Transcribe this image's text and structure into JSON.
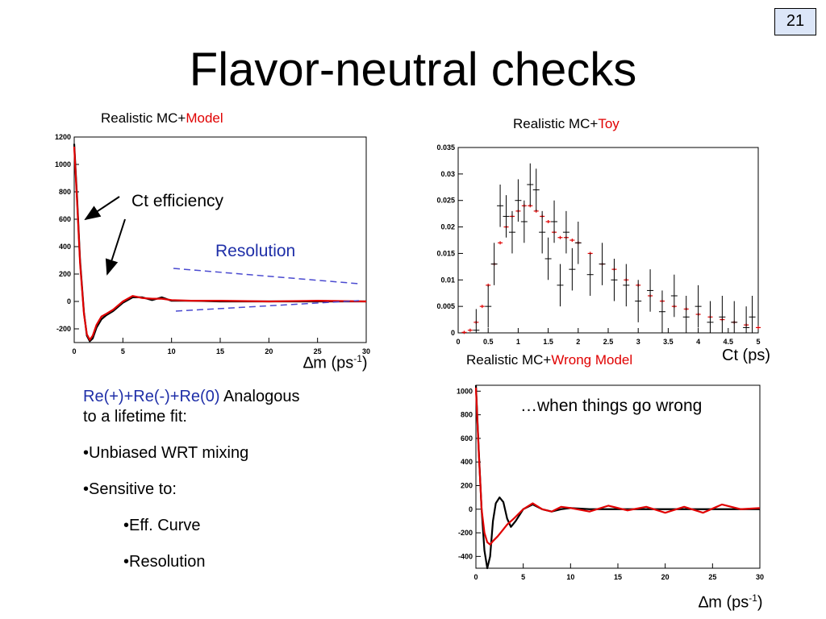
{
  "page_number": "21",
  "title": "Flavor-neutral checks",
  "panels": {
    "top_left": {
      "caption_prefix": "Realistic MC+",
      "caption_colored": "Model",
      "xlabel_main": "∆m (ps",
      "xlabel_sup": "-1",
      "xlabel_close": ")",
      "annotation_ct_eff": "Ct efficiency",
      "annotation_resolution": "Resolution"
    },
    "top_right": {
      "caption_prefix": "Realistic MC+",
      "caption_colored": "Toy",
      "xlabel": "Ct (ps)"
    },
    "bottom_right": {
      "caption_prefix": "Realistic MC+",
      "caption_colored": "Wrong Model",
      "annotation": "…when things go wrong",
      "xlabel_main": "∆m (ps",
      "xlabel_sup": "-1",
      "xlabel_close": ")"
    }
  },
  "text_block": {
    "line1_colored": "Re(+)+Re(-)+Re(0)",
    "line1_rest": " Analogous",
    "line2": "to a lifetime fit:",
    "bullet1": "•Unbiased WRT mixing",
    "bullet2": "•Sensitive to:",
    "sub1": "•Eff. Curve",
    "sub2": "•Resolution"
  },
  "colors": {
    "red": "#e00000",
    "blue": "#1f2fa8",
    "page_box": "#dce6f8"
  },
  "chart_data": [
    {
      "type": "line",
      "id": "top_left",
      "xlim": [
        0,
        30
      ],
      "ylim": [
        -300,
        1200
      ],
      "xticks": [
        0,
        5,
        10,
        15,
        20,
        25,
        30
      ],
      "yticks": [
        -200,
        0,
        200,
        400,
        600,
        800,
        1000,
        1200
      ],
      "series": [
        {
          "color": "#000000",
          "x": [
            0,
            0.3,
            0.6,
            1,
            1.3,
            1.6,
            1.9,
            2.3,
            2.8,
            3.3,
            4,
            5,
            6,
            7,
            8,
            9,
            10,
            12,
            15,
            20,
            25,
            30
          ],
          "y": [
            1150,
            750,
            300,
            -80,
            -250,
            -290,
            -270,
            -190,
            -130,
            -100,
            -70,
            -10,
            30,
            30,
            10,
            30,
            5,
            5,
            0,
            0,
            0,
            0
          ]
        },
        {
          "color": "#e00000",
          "x": [
            0,
            0.3,
            0.6,
            1,
            1.3,
            1.6,
            1.9,
            2.3,
            2.8,
            3.3,
            4,
            5,
            6,
            7,
            8,
            9,
            10,
            12,
            15,
            20,
            25,
            30
          ],
          "y": [
            1130,
            720,
            280,
            -90,
            -240,
            -280,
            -250,
            -170,
            -110,
            -90,
            -60,
            0,
            40,
            25,
            20,
            20,
            10,
            5,
            5,
            0,
            5,
            0
          ]
        }
      ]
    },
    {
      "type": "scatter",
      "id": "top_right",
      "xlim": [
        0,
        5
      ],
      "ylim": [
        0,
        0.035
      ],
      "xticks": [
        0,
        0.5,
        1,
        1.5,
        2,
        2.5,
        3,
        3.5,
        4,
        4.5,
        5
      ],
      "yticks": [
        0,
        0.005,
        0.01,
        0.015,
        0.02,
        0.025,
        0.03,
        0.035
      ],
      "series": [
        {
          "name": "Toy",
          "color": "#e00000",
          "x": [
            0.1,
            0.2,
            0.3,
            0.4,
            0.5,
            0.6,
            0.7,
            0.8,
            0.9,
            1.0,
            1.1,
            1.2,
            1.3,
            1.4,
            1.5,
            1.6,
            1.7,
            1.8,
            1.9,
            2.0,
            2.2,
            2.4,
            2.6,
            2.8,
            3.0,
            3.2,
            3.4,
            3.6,
            3.8,
            4.0,
            4.2,
            4.4,
            4.6,
            4.8,
            5.0
          ],
          "y": [
            0.0001,
            0.0005,
            0.002,
            0.005,
            0.009,
            0.013,
            0.017,
            0.02,
            0.022,
            0.023,
            0.024,
            0.024,
            0.023,
            0.022,
            0.021,
            0.019,
            0.018,
            0.018,
            0.0175,
            0.017,
            0.015,
            0.013,
            0.012,
            0.01,
            0.009,
            0.007,
            0.006,
            0.005,
            0.0045,
            0.0035,
            0.003,
            0.0025,
            0.002,
            0.0015,
            0.001
          ]
        },
        {
          "name": "MC",
          "color": "#000000",
          "x": [
            0.3,
            0.5,
            0.6,
            0.7,
            0.8,
            0.9,
            1.0,
            1.1,
            1.2,
            1.3,
            1.4,
            1.5,
            1.6,
            1.7,
            1.8,
            1.9,
            2.0,
            2.2,
            2.4,
            2.6,
            2.8,
            3.0,
            3.2,
            3.4,
            3.6,
            3.8,
            4.0,
            4.2,
            4.4,
            4.6,
            4.8,
            4.9
          ],
          "y": [
            0.0005,
            0.005,
            0.013,
            0.024,
            0.022,
            0.019,
            0.025,
            0.021,
            0.028,
            0.027,
            0.019,
            0.014,
            0.021,
            0.009,
            0.019,
            0.012,
            0.017,
            0.011,
            0.013,
            0.01,
            0.009,
            0.006,
            0.008,
            0.004,
            0.007,
            0.003,
            0.005,
            0.002,
            0.003,
            0.002,
            0.001,
            0.003
          ],
          "err": 0.004
        }
      ]
    },
    {
      "type": "line",
      "id": "bottom_right",
      "xlim": [
        0,
        30
      ],
      "ylim": [
        -500,
        1050
      ],
      "xticks": [
        0,
        5,
        10,
        15,
        20,
        25,
        30
      ],
      "yticks": [
        -400,
        -200,
        0,
        200,
        400,
        600,
        800,
        1000
      ],
      "series": [
        {
          "color": "#000000",
          "x": [
            0,
            0.3,
            0.6,
            0.9,
            1.2,
            1.5,
            1.8,
            2.1,
            2.5,
            2.9,
            3.3,
            3.7,
            4.2,
            5,
            6,
            7,
            8,
            9,
            10,
            12,
            15,
            20,
            25,
            30
          ],
          "y": [
            1050,
            500,
            0,
            -350,
            -500,
            -400,
            -100,
            50,
            100,
            60,
            -80,
            -150,
            -100,
            0,
            40,
            0,
            -20,
            0,
            10,
            0,
            0,
            0,
            0,
            0
          ]
        },
        {
          "color": "#e00000",
          "x": [
            0,
            0.3,
            0.6,
            0.9,
            1.2,
            1.5,
            1.8,
            2.3,
            2.8,
            3.3,
            4,
            5,
            6,
            7,
            8,
            9,
            10,
            12,
            14,
            16,
            18,
            20,
            22,
            24,
            26,
            28,
            30
          ],
          "y": [
            1030,
            480,
            0,
            -200,
            -280,
            -300,
            -270,
            -230,
            -180,
            -130,
            -80,
            0,
            50,
            0,
            -20,
            20,
            10,
            -20,
            30,
            -10,
            20,
            -30,
            20,
            -30,
            40,
            0,
            10
          ]
        }
      ]
    }
  ]
}
